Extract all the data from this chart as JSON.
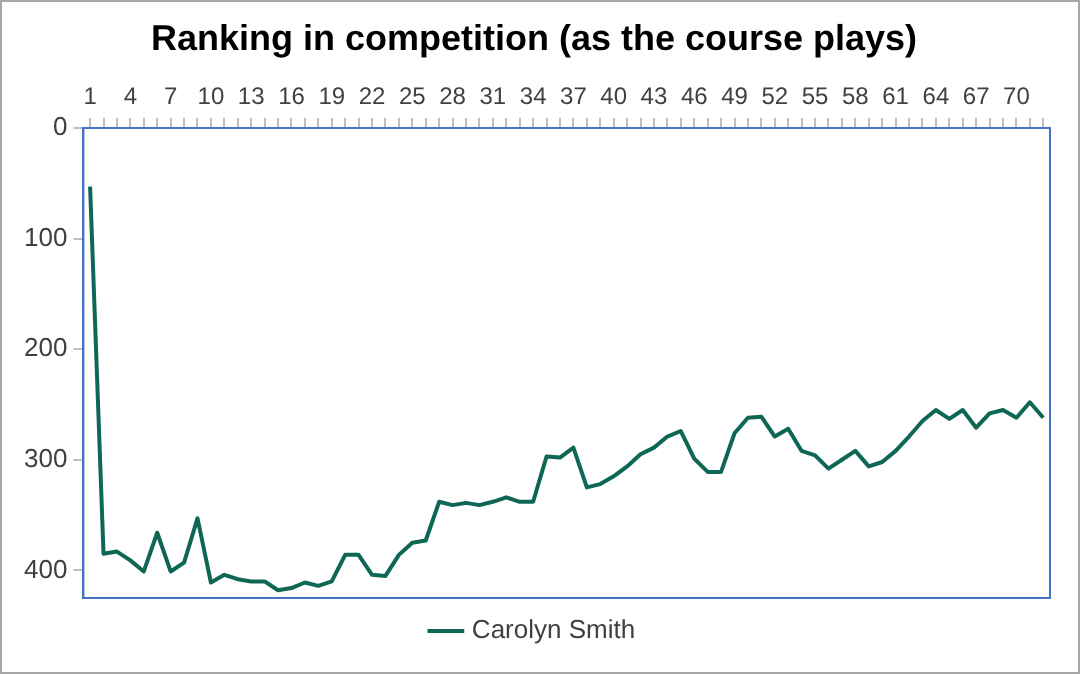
{
  "chart_data": {
    "type": "line",
    "title": "Ranking in competition (as the course plays)",
    "categories": [
      "1",
      null,
      null,
      "4",
      null,
      null,
      "7",
      null,
      null,
      "10",
      null,
      null,
      "13",
      null,
      null,
      "16",
      null,
      null,
      "19",
      null,
      null,
      "22",
      null,
      null,
      "25",
      null,
      null,
      "28",
      null,
      null,
      "31",
      null,
      null,
      "34",
      null,
      null,
      "37",
      null,
      null,
      "40",
      null,
      null,
      "43",
      null,
      null,
      "46",
      null,
      null,
      "49",
      null,
      null,
      "52",
      null,
      null,
      "55",
      null,
      null,
      "58",
      null,
      null,
      "61",
      null,
      null,
      "64",
      null,
      null,
      "67",
      null,
      null,
      "70",
      null,
      null
    ],
    "series": [
      {
        "name": "Carolyn Smith",
        "color": "#0e6655",
        "values": [
          53,
          385,
          383,
          391,
          401,
          366,
          401,
          393,
          353,
          411,
          404,
          408,
          410,
          410,
          418,
          416,
          411,
          414,
          410,
          386,
          386,
          404,
          405,
          386,
          375,
          373,
          338,
          341,
          339,
          341,
          338,
          334,
          338,
          338,
          297,
          298,
          289,
          325,
          322,
          315,
          306,
          295,
          289,
          279,
          274,
          299,
          311,
          311,
          276,
          262,
          261,
          279,
          272,
          292,
          296,
          308,
          300,
          292,
          306,
          302,
          292,
          279,
          265,
          255,
          263,
          255,
          271,
          258,
          255,
          262,
          248,
          262
        ]
      }
    ],
    "ylim": [
      425,
      0
    ],
    "yticks": [
      0,
      100,
      200,
      300,
      400
    ],
    "grid": false,
    "legend": "bottom",
    "marker": "none",
    "line_style": "solid"
  }
}
